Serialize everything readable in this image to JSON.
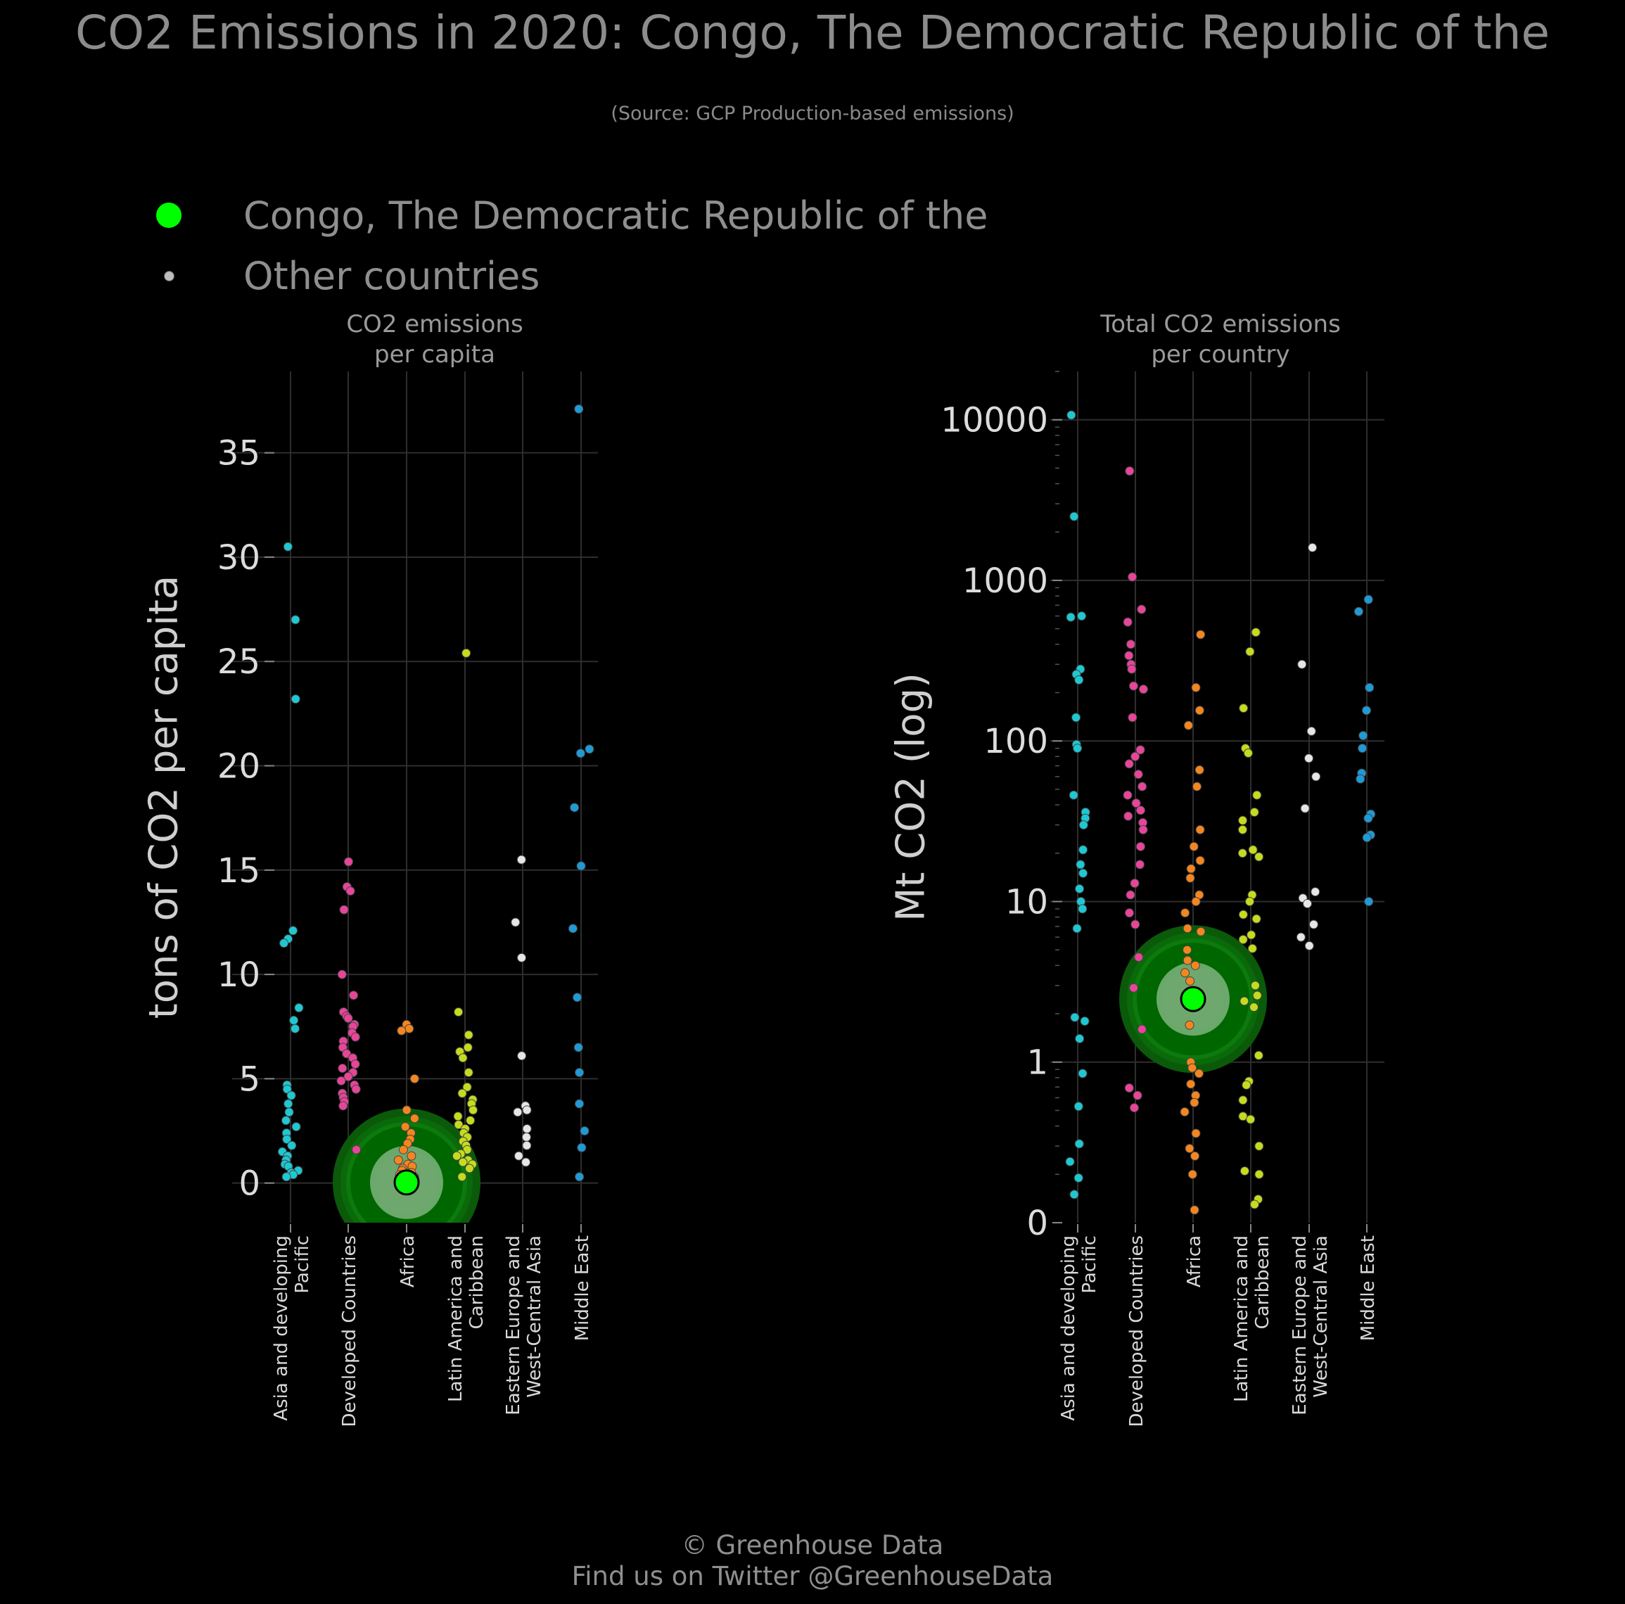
{
  "title": "CO2 Emissions in 2020: Congo, The Democratic Republic of the",
  "subtitle": "(Source: GCP Production-based emissions)",
  "legend": {
    "highlight_label": "Congo, The Democratic Republic of the",
    "other_label": "Other countries",
    "highlight_color": "#00ff00",
    "other_color": "#bdbdbd"
  },
  "footer": {
    "line1": "© Greenhouse Data",
    "line2": "Find us on Twitter @GreenhouseData"
  },
  "chart_data": [
    {
      "type": "scatter",
      "title": "CO2 emissions\nper capita",
      "ylabel": "tons of CO2 per capita",
      "ylim": [
        -1.9,
        38.9
      ],
      "yticks": [
        0,
        5,
        10,
        15,
        20,
        25,
        30,
        35
      ],
      "ytick_labels": [
        "0",
        "5",
        "10",
        "15",
        "20",
        "25",
        "30",
        "35"
      ],
      "grid": true,
      "categories": [
        "Asia and developing\nPacific",
        "Developed Countries",
        "Africa",
        "Latin America and\nCaribbean",
        "Eastern Europe and\nWest-Central Asia",
        "Middle East"
      ],
      "category_colors": [
        "#1ec8d2",
        "#e8459a",
        "#f5861f",
        "#c5dc1e",
        "#e6e6e6",
        "#1e9bd7"
      ],
      "series": [
        {
          "values": [
            30.5,
            27.0,
            23.2,
            12.1,
            11.7,
            11.5,
            8.4,
            7.8,
            7.4,
            4.7,
            4.5,
            4.2,
            3.8,
            3.4,
            3.0,
            2.7,
            2.4,
            2.1,
            1.8,
            1.5,
            1.3,
            1.1,
            0.9,
            0.8,
            0.6,
            0.5,
            0.4,
            0.3
          ]
        },
        {
          "values": [
            15.4,
            14.2,
            14.0,
            13.1,
            10.0,
            9.0,
            8.2,
            8.0,
            7.9,
            7.6,
            7.5,
            7.2,
            7.0,
            6.8,
            6.5,
            6.2,
            6.0,
            5.7,
            5.5,
            5.3,
            5.1,
            4.9,
            4.7,
            4.5,
            4.3,
            4.1,
            3.9,
            3.7,
            1.6
          ]
        },
        {
          "values": [
            7.6,
            7.4,
            7.3,
            5.0,
            3.5,
            3.1,
            2.7,
            2.4,
            2.1,
            1.9,
            1.6,
            1.3,
            1.1,
            0.9,
            0.8,
            0.7,
            0.6,
            0.5,
            0.4,
            0.3,
            0.3,
            0.2,
            0.2,
            0.1,
            0.1,
            0.1
          ]
        },
        {
          "values": [
            25.4,
            8.2,
            7.1,
            6.5,
            6.3,
            6.0,
            5.3,
            4.6,
            4.3,
            4.0,
            3.8,
            3.5,
            3.2,
            3.0,
            2.8,
            2.6,
            2.4,
            2.2,
            2.0,
            1.8,
            1.6,
            1.4,
            1.3,
            1.1,
            1.0,
            0.9,
            0.7,
            0.3
          ]
        },
        {
          "values": [
            15.5,
            12.5,
            10.8,
            6.1,
            3.7,
            3.5,
            3.4,
            2.6,
            2.2,
            1.8,
            1.3,
            1.0
          ]
        },
        {
          "values": [
            37.1,
            20.8,
            20.6,
            18.0,
            15.2,
            12.2,
            8.9,
            6.5,
            5.3,
            3.8,
            2.5,
            1.7,
            0.3
          ]
        }
      ],
      "highlight": {
        "category": "Africa",
        "value": 0.03
      }
    },
    {
      "type": "scatter",
      "title": "Total CO2 emissions\nper country",
      "ylabel": "Mt CO2 (log)",
      "yscale": "log",
      "ylim": [
        0.1,
        20000
      ],
      "yticks": [
        1,
        10,
        100,
        1000,
        10000
      ],
      "ytick_labels": [
        "1",
        "10",
        "100",
        "1000",
        "10000"
      ],
      "bottom_tick_label": "0",
      "grid": true,
      "categories": [
        "Asia and developing\nPacific",
        "Developed Countries",
        "Africa",
        "Latin America and\nCaribbean",
        "Eastern Europe and\nWest-Central Asia",
        "Middle East"
      ],
      "category_colors": [
        "#1ec8d2",
        "#e8459a",
        "#f5861f",
        "#c5dc1e",
        "#e6e6e6",
        "#1e9bd7"
      ],
      "series": [
        {
          "values": [
            10700,
            2500,
            600,
            590,
            280,
            260,
            240,
            140,
            95,
            90,
            46,
            36,
            33,
            30,
            21,
            17,
            15,
            12,
            10,
            9,
            6.8,
            1.9,
            1.8,
            1.4,
            0.85,
            0.53,
            0.31,
            0.24,
            0.19,
            0.15
          ]
        },
        {
          "values": [
            4800,
            1050,
            660,
            550,
            400,
            340,
            300,
            280,
            220,
            210,
            140,
            88,
            80,
            72,
            62,
            52,
            46,
            41,
            37,
            34,
            31,
            28,
            22,
            17,
            13,
            11,
            8.5,
            7.2,
            4.5,
            2.9,
            1.6,
            0.69,
            0.62,
            0.52
          ]
        },
        {
          "values": [
            460,
            215,
            155,
            125,
            66,
            52,
            28,
            22,
            18,
            16,
            14,
            11,
            10,
            8.5,
            6.8,
            6.5,
            5.0,
            4.3,
            4.0,
            3.6,
            3.2,
            2.5,
            1.7,
            1.0,
            0.92,
            0.85,
            0.73,
            0.62,
            0.56,
            0.49,
            0.36,
            0.29,
            0.26,
            0.2,
            0.12
          ]
        },
        {
          "values": [
            475,
            360,
            160,
            90,
            84,
            46,
            36,
            32,
            28,
            21,
            20,
            19,
            11,
            10,
            8.3,
            7.8,
            6.2,
            5.8,
            5.1,
            3.0,
            2.6,
            2.4,
            2.2,
            1.1,
            0.76,
            0.72,
            0.58,
            0.46,
            0.44,
            0.3,
            0.21,
            0.2,
            0.14,
            0.13
          ]
        },
        {
          "values": [
            1600,
            300,
            115,
            78,
            60,
            38,
            11.5,
            10.5,
            9.7,
            7.2,
            6.0,
            5.3
          ]
        },
        {
          "values": [
            760,
            640,
            215,
            155,
            108,
            90,
            63,
            58,
            35,
            33,
            26,
            25,
            10
          ]
        }
      ],
      "highlight": {
        "category": "Africa",
        "value": 2.47
      }
    }
  ]
}
